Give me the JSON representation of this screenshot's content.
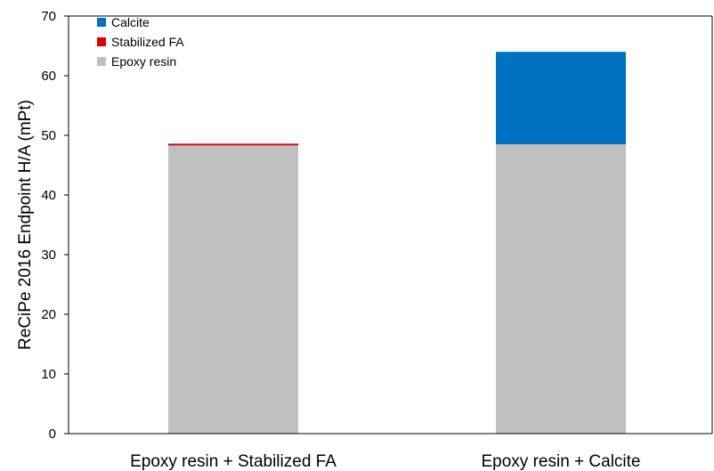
{
  "chart_data": {
    "type": "bar",
    "stacked": true,
    "categories": [
      "Epoxy resin + Stabilized FA",
      "Epoxy resin + Calcite"
    ],
    "series": [
      {
        "name": "Epoxy resin",
        "color": "#c0c0c0",
        "values": [
          48.3,
          48.5
        ]
      },
      {
        "name": "Stabilized FA",
        "color": "#e00000",
        "values": [
          0.3,
          0
        ]
      },
      {
        "name": "Calcite",
        "color": "#0070c0",
        "values": [
          0,
          15.5
        ]
      }
    ],
    "ylabel": "ReCiPe 2016 Endpoint H/A (mPt)",
    "ylim": [
      0,
      70
    ],
    "yticks": [
      0,
      10,
      20,
      30,
      40,
      50,
      60,
      70
    ],
    "grid": false,
    "legend": {
      "position": "top-left",
      "order": [
        "Calcite",
        "Stabilized FA",
        "Epoxy resin"
      ]
    }
  }
}
